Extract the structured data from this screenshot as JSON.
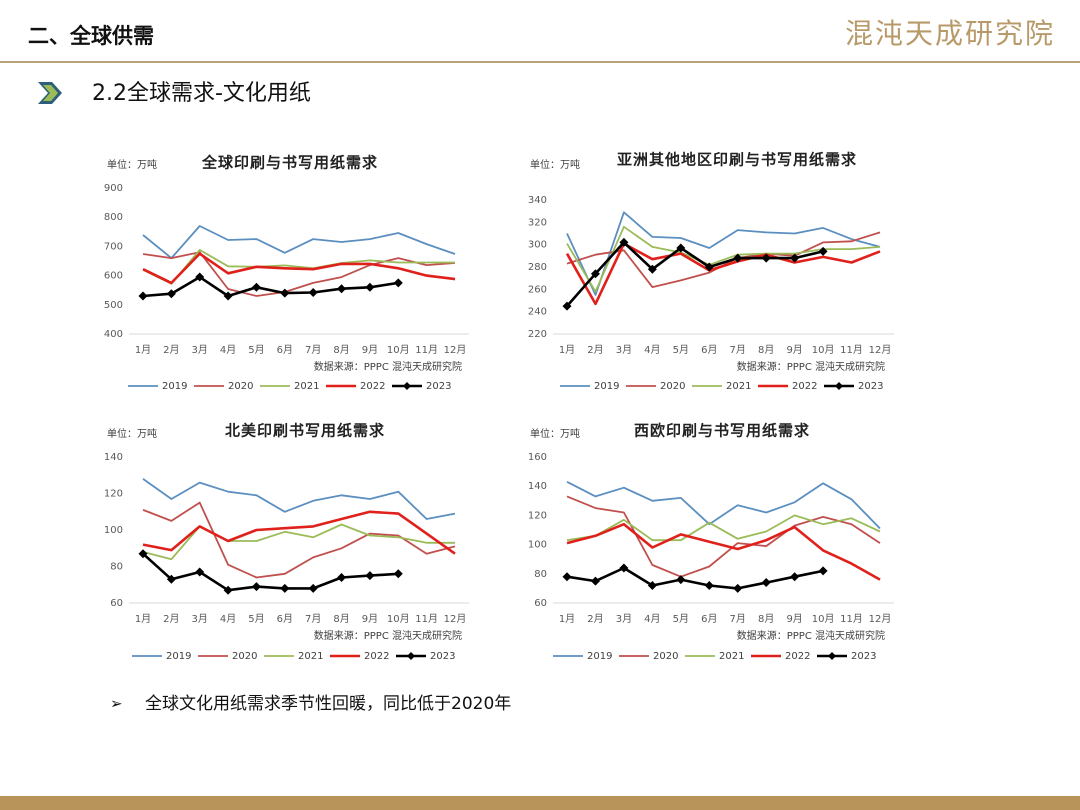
{
  "header": {
    "section": "二、全球供需",
    "logo": "混沌天成研究院",
    "subtitle": "2.2全球需求-文化用纸",
    "bullet": "全球文化用纸需求季节性回暖，同比低于2020年"
  },
  "chart_data": [
    {
      "type": "line",
      "title": "全球印刷与书写用纸需求",
      "unit": "单位：万吨",
      "source": "数据来源：PPPC 混沌天成研究院",
      "categories": [
        "1月",
        "2月",
        "3月",
        "4月",
        "5月",
        "6月",
        "7月",
        "8月",
        "9月",
        "10月",
        "11月",
        "12月"
      ],
      "ylim": [
        400,
        900
      ],
      "yticks": [
        400,
        500,
        600,
        700,
        800,
        900
      ],
      "series": [
        {
          "name": "2019",
          "color": "#5b8fc0",
          "values": [
            739,
            660,
            770,
            722,
            725,
            678,
            725,
            715,
            725,
            746,
            708,
            674
          ]
        },
        {
          "name": "2020",
          "color": "#c0504d",
          "values": [
            674,
            660,
            680,
            554,
            530,
            544,
            575,
            595,
            636,
            660,
            636,
            643
          ]
        },
        {
          "name": "2021",
          "color": "#9bbb59",
          "values": [
            620,
            572,
            688,
            632,
            630,
            635,
            625,
            643,
            652,
            645,
            645,
            645
          ]
        },
        {
          "name": "2022",
          "color": "#e0201b",
          "values": [
            622,
            575,
            675,
            608,
            630,
            625,
            622,
            640,
            640,
            625,
            600,
            588
          ]
        },
        {
          "name": "2023",
          "color": "#000000",
          "values": [
            530,
            538,
            595,
            530,
            560,
            540,
            542,
            555,
            560,
            575,
            null,
            null
          ]
        }
      ]
    },
    {
      "type": "line",
      "title": "亚洲其他地区印刷与书写用纸需求",
      "unit": "单位：万吨",
      "source": "数据来源：PPPC 混沌天成研究院",
      "categories": [
        "1月",
        "2月",
        "3月",
        "4月",
        "5月",
        "6月",
        "7月",
        "8月",
        "9月",
        "10月",
        "11月",
        "12月"
      ],
      "ylim": [
        220,
        340
      ],
      "yticks": [
        220,
        240,
        260,
        280,
        300,
        320,
        340
      ],
      "series": [
        {
          "name": "2019",
          "color": "#5b8fc0",
          "values": [
            310,
            255,
            329,
            307,
            306,
            297,
            313,
            311,
            310,
            315,
            305,
            298
          ]
        },
        {
          "name": "2020",
          "color": "#c0504d",
          "values": [
            283,
            291,
            295,
            262,
            268,
            275,
            288,
            292,
            290,
            302,
            303,
            311
          ]
        },
        {
          "name": "2021",
          "color": "#9bbb59",
          "values": [
            301,
            258,
            316,
            298,
            293,
            282,
            291,
            292,
            292,
            296,
            296,
            298
          ]
        },
        {
          "name": "2022",
          "color": "#e0201b",
          "values": [
            292,
            247,
            301,
            287,
            292,
            277,
            285,
            291,
            284,
            289,
            284,
            294
          ]
        },
        {
          "name": "2023",
          "color": "#000000",
          "values": [
            245,
            274,
            302,
            278,
            297,
            280,
            288,
            288,
            288,
            294,
            null,
            null
          ]
        }
      ]
    },
    {
      "type": "line",
      "title": "北美印刷书写用纸需求",
      "unit": "单位：万吨",
      "source": "数据来源：PPPC 混沌天成研究院",
      "categories": [
        "1月",
        "2月",
        "3月",
        "4月",
        "5月",
        "6月",
        "7月",
        "8月",
        "9月",
        "10月",
        "11月",
        "12月"
      ],
      "ylim": [
        60,
        140
      ],
      "yticks": [
        60,
        80,
        100,
        120,
        140
      ],
      "series": [
        {
          "name": "2019",
          "color": "#5b8fc0",
          "values": [
            128,
            117,
            126,
            121,
            119,
            110,
            116,
            119,
            117,
            121,
            106,
            109
          ]
        },
        {
          "name": "2020",
          "color": "#c0504d",
          "values": [
            111,
            105,
            115,
            81,
            74,
            76,
            85,
            90,
            98,
            97,
            87,
            91
          ]
        },
        {
          "name": "2021",
          "color": "#9bbb59",
          "values": [
            88,
            84,
            102,
            94,
            94,
            99,
            96,
            103,
            97,
            96,
            93,
            93
          ]
        },
        {
          "name": "2022",
          "color": "#e0201b",
          "values": [
            92,
            89,
            102,
            94,
            100,
            101,
            102,
            106,
            110,
            109,
            98,
            87
          ]
        },
        {
          "name": "2023",
          "color": "#000000",
          "values": [
            87,
            73,
            77,
            67,
            69,
            68,
            68,
            74,
            75,
            76,
            null,
            null
          ]
        }
      ]
    },
    {
      "type": "line",
      "title": "西欧印刷与书写用纸需求",
      "unit": "单位：万吨",
      "source": "数据来源：PPPC 混沌天成研究院",
      "categories": [
        "1月",
        "2月",
        "3月",
        "4月",
        "5月",
        "6月",
        "7月",
        "8月",
        "9月",
        "10月",
        "11月",
        "12月"
      ],
      "ylim": [
        60,
        160
      ],
      "yticks": [
        60,
        80,
        100,
        120,
        140,
        160
      ],
      "series": [
        {
          "name": "2019",
          "color": "#5b8fc0",
          "values": [
            143,
            133,
            139,
            130,
            132,
            114,
            127,
            122,
            129,
            142,
            131,
            111
          ]
        },
        {
          "name": "2020",
          "color": "#c0504d",
          "values": [
            133,
            125,
            122,
            86,
            78,
            85,
            101,
            99,
            113,
            119,
            114,
            101
          ]
        },
        {
          "name": "2021",
          "color": "#9bbb59",
          "values": [
            103,
            106,
            117,
            103,
            103,
            115,
            104,
            109,
            120,
            114,
            118,
            109
          ]
        },
        {
          "name": "2022",
          "color": "#e0201b",
          "values": [
            101,
            106,
            114,
            98,
            107,
            102,
            97,
            103,
            112,
            96,
            87,
            76
          ]
        },
        {
          "name": "2023",
          "color": "#000000",
          "values": [
            78,
            75,
            84,
            72,
            76,
            72,
            70,
            74,
            78,
            82,
            null,
            null
          ]
        }
      ]
    }
  ]
}
